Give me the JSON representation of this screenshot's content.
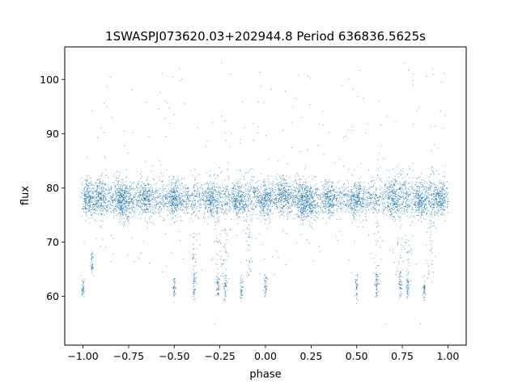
{
  "chart_data": {
    "type": "scatter",
    "title": "1SWASPJ073620.03+202944.8 Period 636836.5625s",
    "xlabel": "phase",
    "ylabel": "flux",
    "xlim": [
      -1.1,
      1.1
    ],
    "ylim": [
      51.0,
      106.0
    ],
    "xticks": [
      -1.0,
      -0.75,
      -0.5,
      -0.25,
      0.0,
      0.25,
      0.5,
      0.75,
      1.0
    ],
    "xtick_labels": [
      "−1.00",
      "−0.75",
      "−0.50",
      "−0.25",
      "0.00",
      "0.25",
      "0.50",
      "0.75",
      "1.00"
    ],
    "yticks": [
      60,
      70,
      80,
      90,
      100
    ],
    "ytick_labels": [
      "60",
      "70",
      "80",
      "90",
      "100"
    ],
    "grid": false,
    "point_color": "#1f77b4",
    "baseline_flux": 78,
    "dip_flux": 62,
    "dip_phases": [
      -0.39,
      -0.26,
      -0.22,
      -0.09,
      0.61,
      0.74,
      0.78,
      0.91
    ],
    "series": [
      {
        "type": "baseline_band",
        "x_range": [
          -1.0,
          1.0
        ],
        "y_center": 78,
        "clumps": [
          {
            "x": -0.97,
            "y": 78
          },
          {
            "x": -0.9,
            "y": 78
          },
          {
            "x": -0.8,
            "y": 78
          },
          {
            "x": -0.77,
            "y": 77
          },
          {
            "x": -0.65,
            "y": 78
          },
          {
            "x": -0.5,
            "y": 78
          },
          {
            "x": -0.3,
            "y": 78
          },
          {
            "x": -0.15,
            "y": 78
          },
          {
            "x": 0.0,
            "y": 78
          },
          {
            "x": 0.1,
            "y": 79
          },
          {
            "x": 0.2,
            "y": 78
          },
          {
            "x": 0.23,
            "y": 77
          },
          {
            "x": 0.35,
            "y": 78
          },
          {
            "x": 0.5,
            "y": 78
          },
          {
            "x": 0.7,
            "y": 78
          },
          {
            "x": 0.85,
            "y": 78
          },
          {
            "x": 0.95,
            "y": 78
          }
        ]
      },
      {
        "type": "dips",
        "points": [
          {
            "x": -1.0,
            "y": 61.5
          },
          {
            "x": -0.95,
            "y": 66
          },
          {
            "x": -0.5,
            "y": 61.5
          },
          {
            "x": -0.39,
            "y": 62
          },
          {
            "x": -0.26,
            "y": 62
          },
          {
            "x": -0.22,
            "y": 61.5
          },
          {
            "x": -0.13,
            "y": 61.5
          },
          {
            "x": 0.0,
            "y": 61.5
          },
          {
            "x": 0.5,
            "y": 61.5
          },
          {
            "x": 0.61,
            "y": 62
          },
          {
            "x": 0.74,
            "y": 62
          },
          {
            "x": 0.78,
            "y": 61.5
          },
          {
            "x": 0.87,
            "y": 61.5
          }
        ]
      },
      {
        "type": "outliers",
        "points": [
          {
            "x": -0.87,
            "y": 95
          },
          {
            "x": -0.84,
            "y": 93
          },
          {
            "x": -0.55,
            "y": 96
          },
          {
            "x": -0.46,
            "y": 100
          },
          {
            "x": -0.29,
            "y": 92
          },
          {
            "x": -0.24,
            "y": 103
          },
          {
            "x": -0.19,
            "y": 101
          },
          {
            "x": 0.15,
            "y": 95
          },
          {
            "x": 0.46,
            "y": 100
          },
          {
            "x": 0.62,
            "y": 96
          },
          {
            "x": 0.71,
            "y": 92
          },
          {
            "x": 0.76,
            "y": 103
          },
          {
            "x": 0.81,
            "y": 101
          },
          {
            "x": 0.97,
            "y": 91
          },
          {
            "x": -0.28,
            "y": 55
          },
          {
            "x": 0.66,
            "y": 55
          },
          {
            "x": 0.85,
            "y": 55
          }
        ]
      }
    ]
  }
}
